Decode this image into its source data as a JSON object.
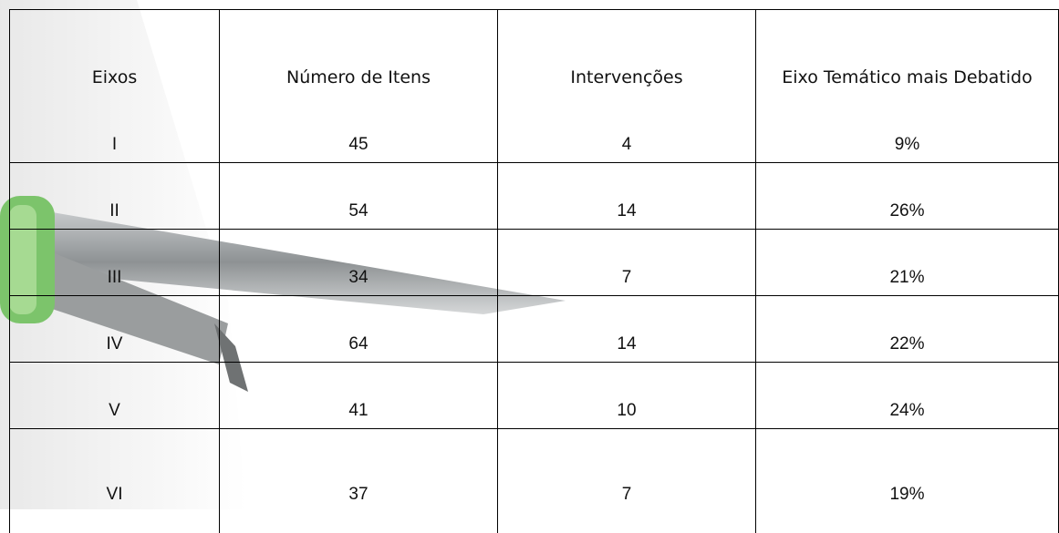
{
  "table": {
    "header": [
      "Eixos",
      "Número de Itens",
      "Intervenções",
      "Eixo Temático mais Debatido"
    ],
    "rows": [
      [
        "I",
        "45",
        "4",
        "9%"
      ],
      [
        "II",
        "54",
        "14",
        "26%"
      ],
      [
        "III",
        "34",
        "7",
        "21%"
      ],
      [
        "IV",
        "64",
        "14",
        "22%"
      ],
      [
        "V",
        "41",
        "10",
        "24%"
      ],
      [
        "VI",
        "37",
        "7",
        "19%"
      ]
    ]
  }
}
